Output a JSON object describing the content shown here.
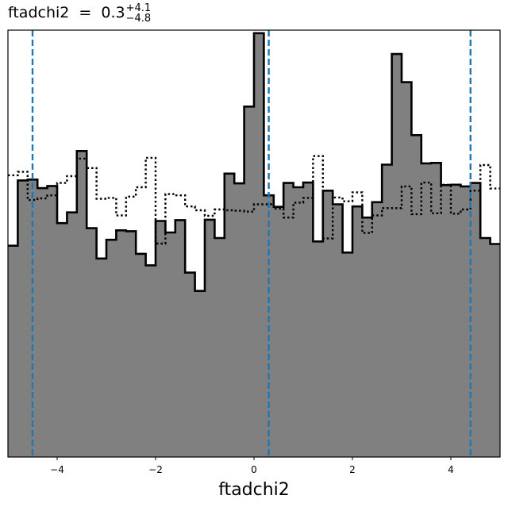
{
  "chart_data": {
    "type": "histogram",
    "title": {
      "label": "ftadchi2",
      "equals": "=",
      "median": "0.3",
      "upper_err": "+4.1",
      "lower_err": "−4.8"
    },
    "xlabel": "ftadchi2",
    "xlim": [
      -5,
      5
    ],
    "ylim": [
      0,
      1
    ],
    "x_ticks": [
      {
        "value": -4,
        "label": "−4"
      },
      {
        "value": -2,
        "label": "−2"
      },
      {
        "value": 0,
        "label": "0"
      },
      {
        "value": 2,
        "label": "2"
      },
      {
        "value": 4,
        "label": "4"
      }
    ],
    "y_ticks_shown": false,
    "bin_edges_start": -5,
    "bin_width": 0.2,
    "series": [
      {
        "style": "filled-step",
        "fill_color": "#808080",
        "line_color": "#000000",
        "values": [
          0.495,
          0.648,
          0.65,
          0.63,
          0.635,
          0.548,
          0.573,
          0.717,
          0.536,
          0.465,
          0.509,
          0.531,
          0.529,
          0.476,
          0.449,
          0.553,
          0.526,
          0.555,
          0.432,
          0.389,
          0.556,
          0.513,
          0.664,
          0.641,
          0.821,
          0.993,
          0.613,
          0.586,
          0.642,
          0.632,
          0.643,
          0.505,
          0.624,
          0.592,
          0.479,
          0.587,
          0.561,
          0.597,
          0.685,
          0.944,
          0.878,
          0.754,
          0.688,
          0.689,
          0.637,
          0.638,
          0.634,
          0.642,
          0.513,
          0.499
        ]
      },
      {
        "style": "dotted-step",
        "line_color": "#000000",
        "values": [
          0.66,
          0.668,
          0.602,
          0.606,
          0.613,
          0.642,
          0.658,
          0.699,
          0.677,
          0.605,
          0.607,
          0.566,
          0.61,
          0.632,
          0.701,
          0.5,
          0.616,
          0.613,
          0.587,
          0.578,
          0.565,
          0.58,
          0.578,
          0.577,
          0.575,
          0.592,
          0.592,
          0.582,
          0.561,
          0.596,
          0.607,
          0.705,
          0.512,
          0.608,
          0.599,
          0.62,
          0.525,
          0.566,
          0.583,
          0.583,
          0.634,
          0.569,
          0.643,
          0.571,
          0.638,
          0.57,
          0.58,
          0.624,
          0.684,
          0.629
        ]
      }
    ],
    "reference_lines": [
      {
        "x": -4.5,
        "style": "dashed",
        "color": "#1f77b4"
      },
      {
        "x": 0.3,
        "style": "dashed",
        "color": "#1f77b4"
      },
      {
        "x": 4.4,
        "style": "dashed",
        "color": "#1f77b4"
      }
    ],
    "grid": false,
    "legend": "none"
  }
}
